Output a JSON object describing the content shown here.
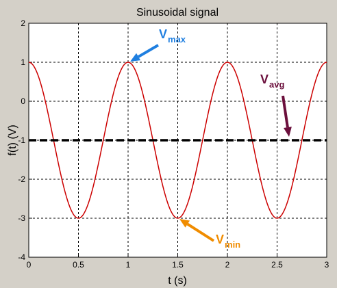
{
  "chart_data": {
    "type": "line",
    "title": "Sinusoidal signal",
    "xlabel": "t (s)",
    "ylabel": "f(t) (V)",
    "xlim": [
      0,
      3
    ],
    "ylim": [
      -4,
      2
    ],
    "xticks": [
      "0",
      "0.5",
      "1",
      "1.5",
      "2",
      "2.5",
      "3"
    ],
    "yticks": [
      "-4",
      "-3",
      "-2",
      "-1",
      "0",
      "1",
      "2"
    ],
    "grid": true,
    "series": [
      {
        "function": "f(t) = -1 + 2*cos(2*pi*t)",
        "color": "#cc0000",
        "x": [
          0,
          0.25,
          0.5,
          0.75,
          1,
          1.25,
          1.5,
          1.75,
          2,
          2.25,
          2.5,
          2.75,
          3
        ],
        "values": [
          1,
          -1,
          -3,
          -1,
          1,
          -1,
          -3,
          -1,
          1,
          -1,
          -3,
          -1,
          1
        ]
      },
      {
        "style": "dashed",
        "color": "#000000",
        "x": [
          0,
          3
        ],
        "values": [
          -1,
          -1
        ]
      }
    ],
    "annotations": [
      {
        "main": "V",
        "sub": "max",
        "color": "#1f7fe0",
        "target": [
          1,
          1
        ]
      },
      {
        "main": "V",
        "sub": "avg",
        "color": "#6b0f3c",
        "target": [
          2.6,
          -1
        ]
      },
      {
        "main": "V",
        "sub": "min",
        "color": "#f08c00",
        "target": [
          1.5,
          -3
        ]
      }
    ]
  }
}
